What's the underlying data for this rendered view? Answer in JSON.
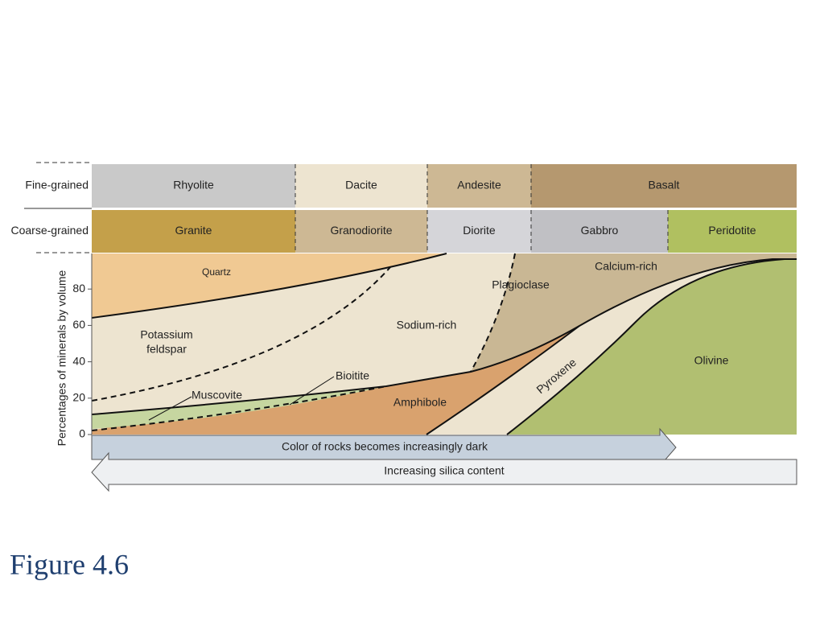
{
  "rows": [
    {
      "label": "Fine-grained",
      "cells": [
        "Rhyolite",
        "Dacite",
        "Andesite",
        "Basalt"
      ]
    },
    {
      "label": "Coarse-grained",
      "cells": [
        "Granite",
        "Granodiorite",
        "Diorite",
        "Gabbro",
        "Peridotite"
      ]
    }
  ],
  "y_axis": {
    "label": "Percentages of minerals by volume",
    "ticks": [
      0,
      20,
      40,
      60,
      80
    ]
  },
  "minerals": {
    "quartz": "Quartz",
    "potassium_feldspar": [
      "Potassium",
      "feldspar"
    ],
    "sodium_rich": "Sodium-rich",
    "plagioclase": "Plagioclase",
    "calcium_rich": "Calcium-rich",
    "olivine": "Olivine",
    "pyroxene": "Pyroxene",
    "amphibole": "Amphibole",
    "biotite": "Bioitite",
    "muscovite": "Muscovite"
  },
  "arrows": {
    "color": "Color of rocks becomes increasingly dark",
    "silica": "Increasing silica content"
  },
  "caption": "Figure 4.6"
}
